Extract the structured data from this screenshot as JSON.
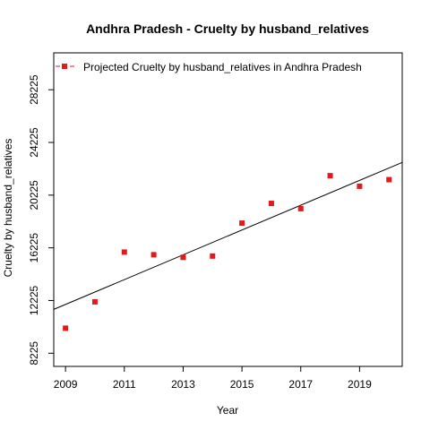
{
  "chart_data": {
    "type": "scatter",
    "title": "Andhra Pradesh  -  Cruelty by husband_relatives",
    "xlabel": "Year",
    "ylabel": "Cruelty by husband_relatives",
    "x_ticks": [
      2009,
      2011,
      2013,
      2015,
      2017,
      2019
    ],
    "y_ticks": [
      8225,
      12225,
      16225,
      20225,
      24225,
      28225
    ],
    "xlim": [
      2008.6,
      2020.45
    ],
    "ylim": [
      7225,
      31025
    ],
    "legend": {
      "label": "Projected  Cruelty by husband_relatives  in  Andhra Pradesh",
      "position": "top-left"
    },
    "series": [
      {
        "name": "Projected  Cruelty by husband_relatives  in  Andhra Pradesh",
        "color": "#e31a1c",
        "marker": "square",
        "x": [
          2009,
          2010,
          2011,
          2012,
          2013,
          2014,
          2015,
          2016,
          2017,
          2018,
          2019,
          2020
        ],
        "y": [
          10125,
          12125,
          15900,
          15700,
          15500,
          15600,
          18100,
          19600,
          19200,
          21700,
          20900,
          21400
        ]
      }
    ],
    "trendline": {
      "color": "#000000",
      "x": [
        2008.6,
        2020.45
      ],
      "y": [
        11550,
        22710
      ]
    }
  }
}
